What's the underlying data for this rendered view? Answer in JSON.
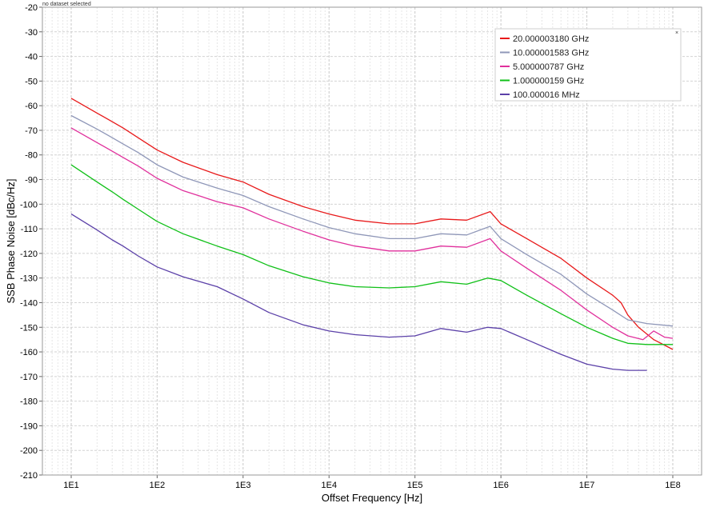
{
  "status_text": "no dataset selected",
  "legend_close_glyph": "×",
  "chart_data": {
    "type": "line",
    "xlabel": "Offset Frequency [Hz]",
    "ylabel": "SSB Phase Noise [dBc/Hz]",
    "x_scale": "log",
    "xlim": [
      10,
      100000000
    ],
    "ylim": [
      -210,
      -20
    ],
    "x_ticks": [
      10,
      100,
      1000,
      10000,
      100000,
      1000000,
      10000000,
      100000000
    ],
    "x_tick_labels": [
      "1E1",
      "1E2",
      "1E3",
      "1E4",
      "1E5",
      "1E6",
      "1E7",
      "1E8"
    ],
    "y_ticks": [
      -20,
      -30,
      -40,
      -50,
      -60,
      -70,
      -80,
      -90,
      -100,
      -110,
      -120,
      -130,
      -140,
      -150,
      -160,
      -170,
      -180,
      -190,
      -200,
      -210
    ],
    "y_tick_labels": [
      "-20",
      "-30",
      "-40",
      "-50",
      "-60",
      "-70",
      "-80",
      "-90",
      "-100",
      "-110",
      "-120",
      "-130",
      "-140",
      "-150",
      "-160",
      "-170",
      "-180",
      "-190",
      "-200",
      "-210"
    ],
    "grid": true,
    "legend_position": "top-right",
    "series": [
      {
        "name": "20.000003180 GHz",
        "color": "#e8191a",
        "x": [
          10,
          20,
          30,
          40,
          60,
          100,
          200,
          500,
          1000,
          2000,
          5000,
          10000,
          20000,
          50000,
          100000,
          200000,
          400000,
          750000,
          1000000,
          2000000,
          5000000,
          10000000,
          20000000,
          25000000,
          30000000,
          40000000,
          60000000,
          100000000
        ],
        "y": [
          -57,
          -63,
          -66.5,
          -69,
          -73,
          -78,
          -83,
          -88,
          -91,
          -96,
          -101,
          -104,
          -106.5,
          -108,
          -108,
          -106,
          -106.5,
          -103,
          -108,
          -114,
          -122,
          -130,
          -137,
          -140,
          -145,
          -150,
          -155,
          -159
        ]
      },
      {
        "name": "10.000001583 GHz",
        "color": "#8f97b8",
        "x": [
          10,
          20,
          30,
          40,
          60,
          100,
          200,
          500,
          1000,
          2000,
          5000,
          10000,
          20000,
          50000,
          100000,
          200000,
          400000,
          750000,
          1000000,
          2000000,
          5000000,
          10000000,
          20000000,
          30000000,
          50000000,
          100000000
        ],
        "y": [
          -64,
          -69.5,
          -73,
          -75.5,
          -79,
          -84,
          -89,
          -93.5,
          -96.5,
          -101,
          -106,
          -109.5,
          -112,
          -114,
          -114,
          -112,
          -112.5,
          -109,
          -114,
          -120.5,
          -128.5,
          -136.5,
          -143,
          -147,
          -148.5,
          -149.5
        ]
      },
      {
        "name": "5.000000787 GHz",
        "color": "#e0309c",
        "x": [
          10,
          20,
          30,
          40,
          60,
          100,
          200,
          500,
          1000,
          2000,
          5000,
          10000,
          20000,
          50000,
          100000,
          200000,
          400000,
          750000,
          1000000,
          2000000,
          5000000,
          10000000,
          20000000,
          30000000,
          45000000,
          60000000,
          80000000,
          100000000
        ],
        "y": [
          -69,
          -75,
          -78.5,
          -81,
          -84.5,
          -89.5,
          -94.5,
          -99,
          -101.5,
          -106,
          -111,
          -114.5,
          -117,
          -119,
          -119,
          -117,
          -117.5,
          -114,
          -119,
          -126,
          -135,
          -143,
          -150,
          -153.5,
          -155,
          -151.5,
          -154,
          -154.5
        ]
      },
      {
        "name": "1.000000159 GHz",
        "color": "#10c018",
        "x": [
          10,
          20,
          30,
          40,
          60,
          100,
          200,
          500,
          1000,
          2000,
          5000,
          10000,
          20000,
          50000,
          100000,
          200000,
          400000,
          700000,
          1000000,
          2000000,
          5000000,
          10000000,
          20000000,
          30000000,
          50000000,
          100000000
        ],
        "y": [
          -84,
          -91,
          -95,
          -98,
          -102,
          -107,
          -112,
          -117,
          -120.5,
          -125,
          -129.5,
          -132,
          -133.5,
          -134,
          -133.5,
          -131.5,
          -132.5,
          -130,
          -131,
          -137,
          -144.5,
          -150,
          -154.5,
          -156.5,
          -157,
          -157
        ]
      },
      {
        "name": "100.000016 MHz",
        "color": "#5b40a8",
        "x": [
          10,
          20,
          30,
          40,
          60,
          100,
          200,
          500,
          1000,
          2000,
          5000,
          10000,
          20000,
          50000,
          100000,
          200000,
          400000,
          700000,
          1000000,
          2000000,
          5000000,
          10000000,
          20000000,
          30000000,
          50000000
        ],
        "y": [
          -104,
          -110.5,
          -114.5,
          -117,
          -121,
          -125.5,
          -129.5,
          -133.5,
          -138.5,
          -144,
          -149,
          -151.5,
          -153,
          -154,
          -153.5,
          -150.5,
          -152,
          -150,
          -150.5,
          -155,
          -161,
          -165,
          -167,
          -167.5,
          -167.5
        ]
      }
    ]
  }
}
